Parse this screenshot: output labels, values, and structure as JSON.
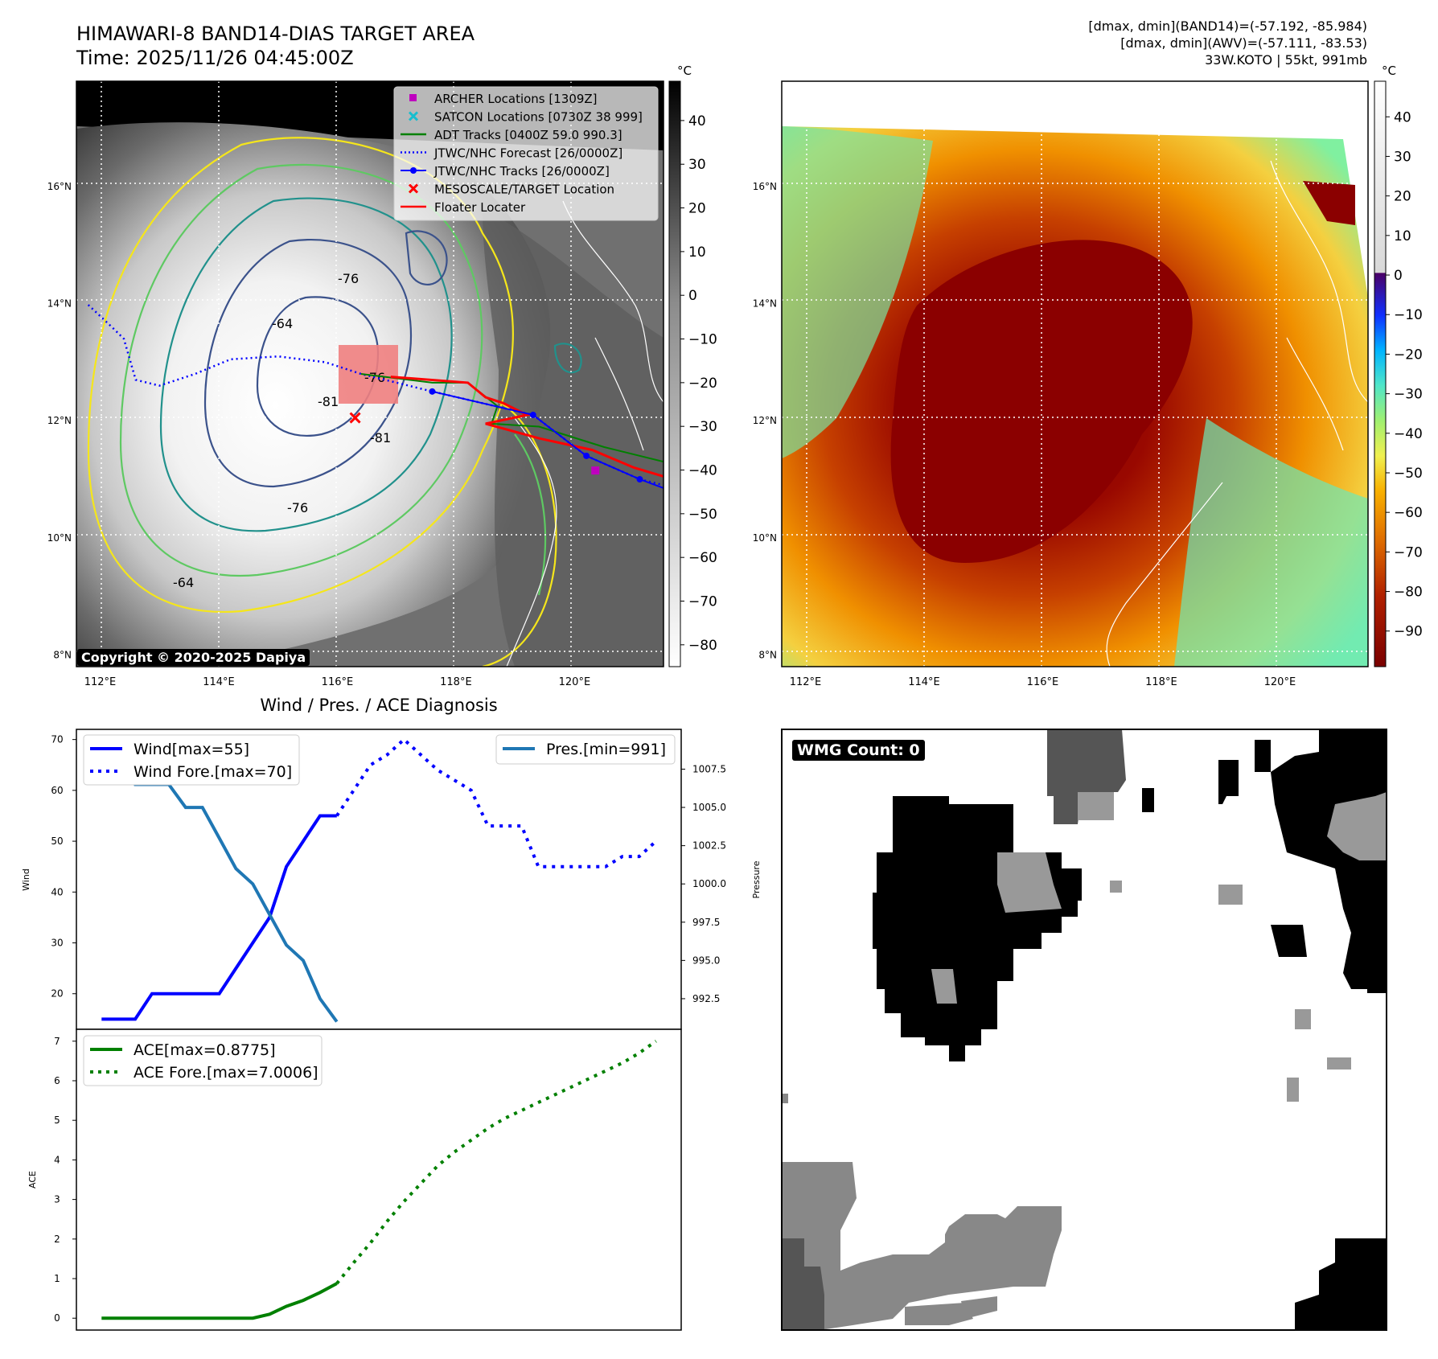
{
  "header": {
    "title": "HIMAWARI-8 BAND14-DIAS TARGET AREA",
    "time": "Time: 2025/11/26 04:45:00Z",
    "stats_band14": "[dmax, dmin](BAND14)=(-57.192, -85.984)",
    "stats_awv": "[dmax, dmin](AWV)=(-57.111, -83.53)",
    "storm": "33W.KOTO | 55kt, 991mb"
  },
  "maps": {
    "lon_ticks": [
      "112°E",
      "114°E",
      "116°E",
      "118°E",
      "120°E"
    ],
    "lat_ticks": [
      "16°N",
      "14°N",
      "12°N",
      "10°N",
      "8°N"
    ],
    "lon_range": [
      111.6,
      121.5
    ],
    "lat_range": [
      7.8,
      17.8
    ],
    "unit": "°C",
    "copyright": "Copyright © 2020-2025 Dapiya",
    "ir_colorbar_ticks": [
      "40",
      "30",
      "20",
      "10",
      "0",
      "−10",
      "−20",
      "−30",
      "−40",
      "−50",
      "−60",
      "−70",
      "−80"
    ],
    "color_colorbar_ticks": [
      "40",
      "30",
      "20",
      "10",
      "0",
      "−10",
      "−20",
      "−30",
      "−40",
      "−50",
      "−60",
      "−70",
      "−80",
      "−90"
    ],
    "contour_labels": [
      "-76",
      "-64",
      "-81",
      "-76",
      "-64",
      "-76",
      "-81"
    ],
    "legend": [
      {
        "label": "ARCHER Locations [1309Z]",
        "color": "#bf00bf",
        "marker": "square"
      },
      {
        "label": "SATCON Locations [0730Z 38 999]",
        "color": "#17becf",
        "marker": "x"
      },
      {
        "label": "ADT Tracks [0400Z 59.0 990.3]",
        "color": "#008000",
        "marker": "line"
      },
      {
        "label": "JTWC/NHC Forecast [26/0000Z]",
        "color": "#0000ff",
        "marker": "dotted"
      },
      {
        "label": "JTWC/NHC Tracks [26/0000Z]",
        "color": "#0000ff",
        "marker": "line-dot"
      },
      {
        "label": "MESOSCALE/TARGET Location",
        "color": "#ff0000",
        "marker": "x"
      },
      {
        "label": "Floater Locater",
        "color": "#ff0000",
        "marker": "line"
      }
    ],
    "wmg_count": "WMG Count: 0"
  },
  "chart_data": [
    {
      "type": "line",
      "title": "Wind / Pres. / ACE Diagnosis",
      "ylabel": "Wind",
      "y2label": "Pressure",
      "ylim": [
        13,
        72
      ],
      "y2lim": [
        990.5,
        1010.1
      ],
      "yticks": [
        20,
        30,
        40,
        50,
        60,
        70
      ],
      "y2ticks": [
        "992.5",
        "995.0",
        "997.5",
        "1000.0",
        "1002.5",
        "1005.0",
        "1007.5"
      ],
      "x": [
        0,
        1,
        2,
        3,
        4,
        5,
        6,
        7,
        8,
        9,
        10,
        11,
        12,
        13,
        14,
        15,
        16,
        17,
        18,
        19,
        20,
        21,
        22,
        23,
        24,
        25,
        26,
        27,
        28,
        29,
        30,
        31,
        32,
        33
      ],
      "xlim": [
        -1.5,
        34.5
      ],
      "series": [
        {
          "name": "Wind[max=55]",
          "axis": "left",
          "color": "#0000ff",
          "style": "solid",
          "x": [
            0,
            1,
            2,
            3,
            4,
            5,
            6,
            7,
            8,
            9,
            10,
            11,
            12,
            13,
            14
          ],
          "values": [
            15,
            15,
            15,
            20,
            20,
            20,
            20,
            20,
            25,
            30,
            35,
            45,
            50,
            55,
            55
          ]
        },
        {
          "name": "Wind Fore.[max=70]",
          "axis": "left",
          "color": "#0000ff",
          "style": "dotted",
          "x": [
            14,
            15,
            16,
            17,
            18,
            19,
            20,
            21,
            22,
            23,
            24,
            25,
            26,
            27,
            28,
            29,
            30,
            31,
            32,
            33
          ],
          "values": [
            55,
            60,
            65,
            67,
            70,
            67,
            64,
            62,
            60,
            53,
            53,
            53,
            45,
            45,
            45,
            45,
            45,
            47,
            47,
            50
          ]
        },
        {
          "name": "Pres.[min=991]",
          "axis": "right",
          "color": "#1f77b4",
          "style": "solid",
          "x": [
            0,
            1,
            2,
            3,
            4,
            5,
            6,
            7,
            8,
            9,
            10,
            11,
            12,
            13,
            14
          ],
          "values": [
            1009,
            1009,
            1006.5,
            1006.5,
            1006.5,
            1005,
            1005,
            1003,
            1001,
            1000,
            998,
            996,
            995,
            992.5,
            991
          ]
        }
      ]
    },
    {
      "type": "line",
      "ylabel": "ACE",
      "ylim": [
        -0.3,
        7.3
      ],
      "yticks": [
        0,
        1,
        2,
        3,
        4,
        5,
        6,
        7
      ],
      "xlim": [
        -1.5,
        34.5
      ],
      "series": [
        {
          "name": "ACE[max=0.8775]",
          "color": "#008000",
          "style": "solid",
          "x": [
            0,
            1,
            2,
            3,
            4,
            5,
            6,
            7,
            8,
            9,
            10,
            11,
            12,
            13,
            14
          ],
          "values": [
            0,
            0,
            0,
            0,
            0,
            0,
            0,
            0,
            0,
            0,
            0.1,
            0.3,
            0.45,
            0.65,
            0.8775
          ]
        },
        {
          "name": "ACE Fore.[max=7.0006]",
          "color": "#008000",
          "style": "dotted",
          "x": [
            14,
            15,
            16,
            17,
            18,
            19,
            20,
            21,
            22,
            23,
            24,
            25,
            26,
            27,
            28,
            29,
            30,
            31,
            32,
            33
          ],
          "values": [
            0.8775,
            1.4,
            1.9,
            2.45,
            2.95,
            3.4,
            3.85,
            4.2,
            4.5,
            4.8,
            5.05,
            5.25,
            5.45,
            5.65,
            5.85,
            6.05,
            6.25,
            6.45,
            6.7,
            7.0006
          ]
        }
      ]
    }
  ]
}
